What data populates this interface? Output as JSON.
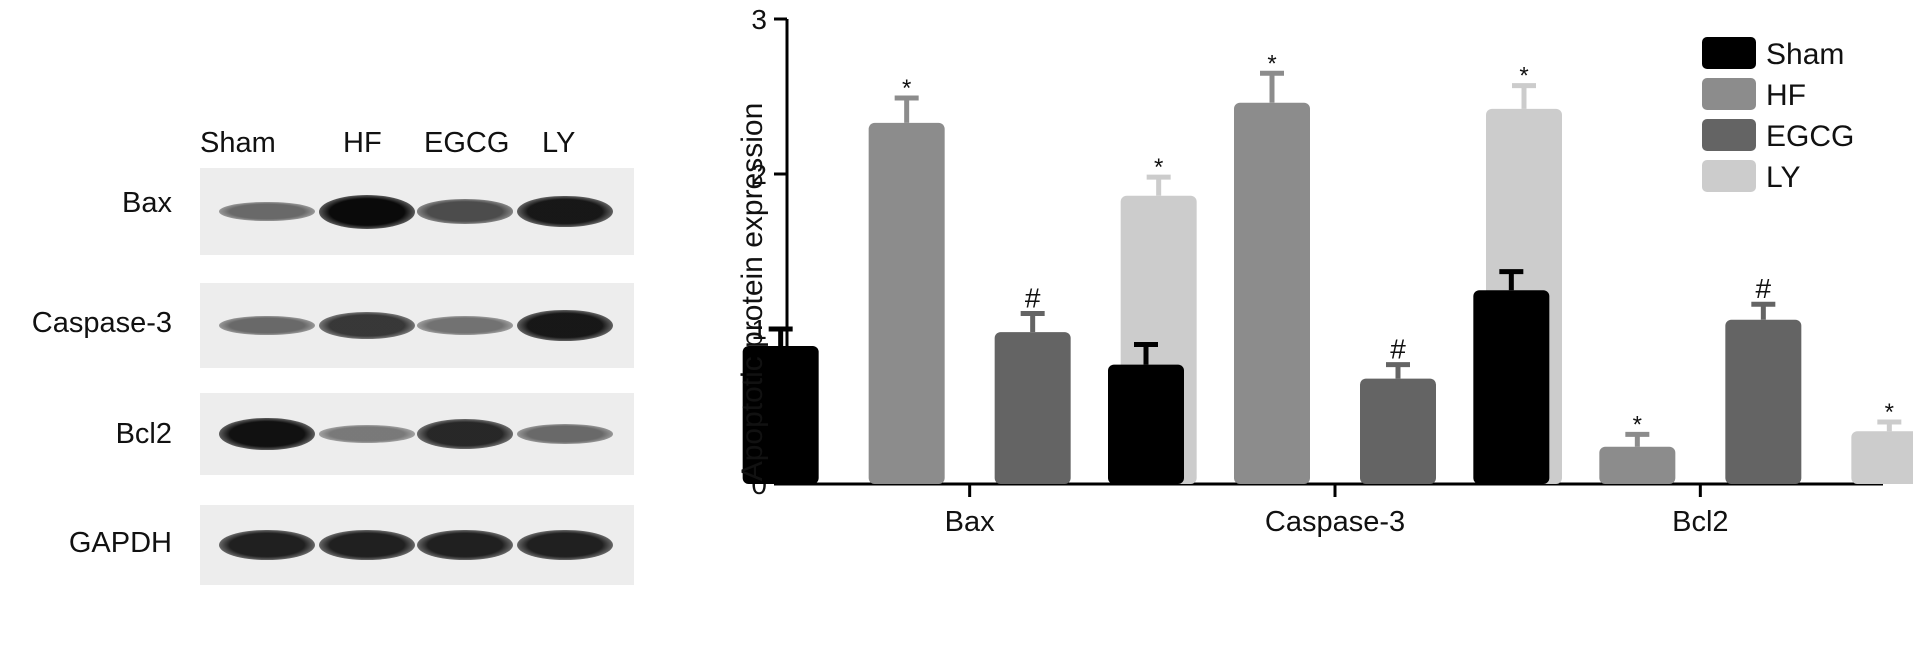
{
  "western_blot": {
    "lanes": [
      "Sham",
      "HF",
      "EGCG",
      "LY"
    ],
    "rows": [
      {
        "label": "Bax",
        "intensity": [
          0.35,
          1.0,
          0.55,
          0.9
        ]
      },
      {
        "label": "Caspase-3",
        "intensity": [
          0.35,
          0.7,
          0.3,
          0.9
        ]
      },
      {
        "label": "Bcl2",
        "intensity": [
          0.95,
          0.25,
          0.8,
          0.35
        ]
      },
      {
        "label": "GAPDH",
        "intensity": [
          0.85,
          0.85,
          0.85,
          0.85
        ]
      }
    ]
  },
  "chart_data": {
    "type": "bar",
    "ylabel": "Apoptotic protein expression",
    "xlabel": "",
    "ylim": [
      0,
      3
    ],
    "yticks": [
      0,
      1,
      2,
      3
    ],
    "categories": [
      "Bax",
      "Caspase-3",
      "Bcl2"
    ],
    "series": [
      {
        "name": "Sham",
        "color": "#000000",
        "values": [
          0.89,
          0.77,
          1.25
        ],
        "errors": [
          0.11,
          0.13,
          0.12
        ],
        "marks": [
          "",
          "",
          ""
        ]
      },
      {
        "name": "HF",
        "color": "#8c8c8c",
        "values": [
          2.33,
          2.46,
          0.24
        ],
        "errors": [
          0.16,
          0.19,
          0.08
        ],
        "marks": [
          "*",
          "*",
          "*"
        ]
      },
      {
        "name": "EGCG",
        "color": "#646464",
        "values": [
          0.98,
          0.68,
          1.06
        ],
        "errors": [
          0.12,
          0.09,
          0.1
        ],
        "marks": [
          "#",
          "#",
          "#"
        ]
      },
      {
        "name": "LY",
        "color": "#cccccc",
        "values": [
          1.86,
          2.42,
          0.34
        ],
        "errors": [
          0.12,
          0.15,
          0.06
        ],
        "marks": [
          "*",
          "*",
          "*"
        ]
      }
    ],
    "legend": "top-right",
    "grid": false
  }
}
